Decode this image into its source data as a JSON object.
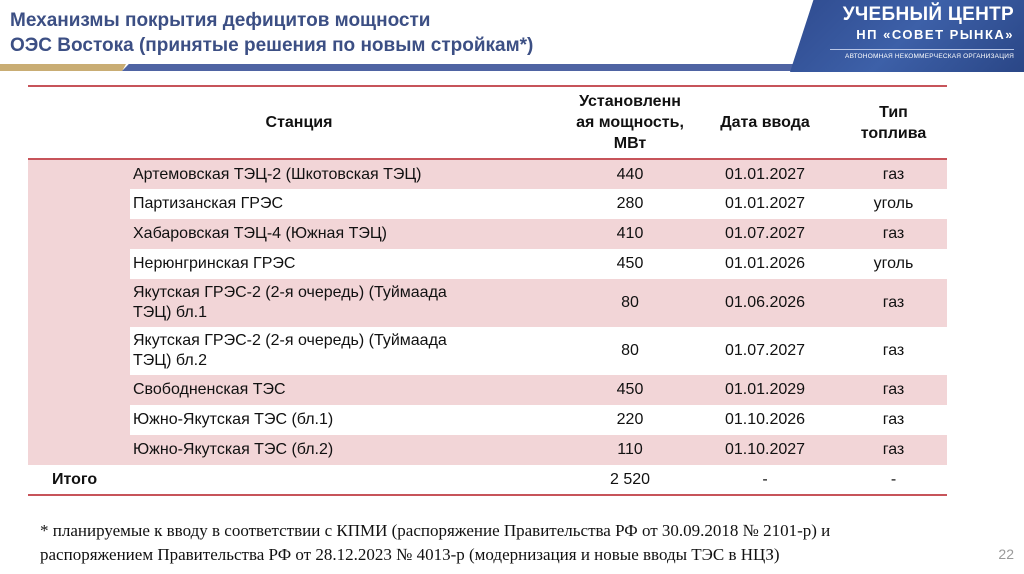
{
  "header": {
    "title_line1": "Механизмы покрытия дефицитов мощности",
    "title_line2": "ОЭС Востока (принятые решения по новым стройкам*)",
    "accent_gold": "#c9ad74",
    "accent_blue": "#4f64a3",
    "title_color": "#3c4f84"
  },
  "logo": {
    "line1": "УЧЕБНЫЙ ЦЕНТР",
    "line2": "НП «СОВЕТ РЫНКА»",
    "line3": "АВТОНОМНАЯ НЕКОММЕРЧЕСКАЯ ОРГАНИЗАЦИЯ"
  },
  "table": {
    "columns": {
      "station": "Станция",
      "capacity": "Установленная мощность, МВт",
      "capacity_l1": "Установленн",
      "capacity_l2": "ая мощность,",
      "capacity_l3": "МВт",
      "date": "Дата ввода",
      "fuel_l1": "Тип",
      "fuel_l2": "топлива"
    },
    "rows": [
      {
        "station": "Артемовская ТЭЦ-2 (Шкотовская ТЭЦ)",
        "capacity": "440",
        "date": "01.01.2027",
        "fuel": "газ"
      },
      {
        "station": "Партизанская ГРЭС",
        "capacity": "280",
        "date": "01.01.2027",
        "fuel": "уголь"
      },
      {
        "station": "Хабаровская ТЭЦ-4 (Южная ТЭЦ)",
        "capacity": "410",
        "date": "01.07.2027",
        "fuel": "газ"
      },
      {
        "station": "Нерюнгринская ГРЭС",
        "capacity": "450",
        "date": "01.01.2026",
        "fuel": "уголь"
      },
      {
        "station_l1": "Якутская ГРЭС-2 (2-я очередь) (Туймаада",
        "station_l2": "ТЭЦ) бл.1",
        "capacity": "80",
        "date": "01.06.2026",
        "fuel": "газ"
      },
      {
        "station_l1": "Якутская ГРЭС-2 (2-я очередь) (Туймаада",
        "station_l2": "ТЭЦ) бл.2",
        "capacity": "80",
        "date": "01.07.2027",
        "fuel": "газ"
      },
      {
        "station": "Свободненская ТЭС",
        "capacity": "450",
        "date": "01.01.2029",
        "fuel": "газ"
      },
      {
        "station": "Южно-Якутская ТЭС (бл.1)",
        "capacity": "220",
        "date": "01.10.2026",
        "fuel": "газ"
      },
      {
        "station": "Южно-Якутская ТЭС (бл.2)",
        "capacity": "110",
        "date": "01.10.2027",
        "fuel": "газ"
      }
    ],
    "total": {
      "label": "Итого",
      "capacity": "2 520",
      "date": "-",
      "fuel": "-"
    },
    "row_tint": "#f2d5d7",
    "rule_color": "#c7545a"
  },
  "footnote": {
    "line1": "* планируемые к вводу в соответствии с КПМИ (распоряжение Правительства РФ от 30.09.2018 № 2101-р) и",
    "line2": "распоряжением Правительства РФ от 28.12.2023 № 4013-р (модернизация и новые вводы ТЭС в НЦЗ)"
  },
  "page_number": "22"
}
